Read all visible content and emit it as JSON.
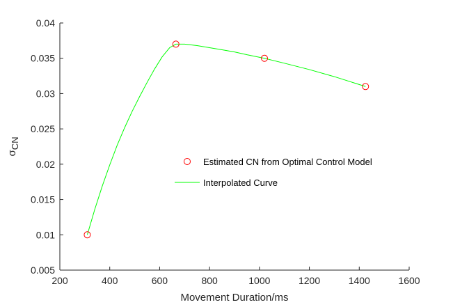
{
  "chart_data": {
    "type": "scatter",
    "xlabel": "Movement Duration/ms",
    "ylabel_main": "σ",
    "ylabel_sub": "CN",
    "xlim": [
      200,
      1600
    ],
    "ylim": [
      0.005,
      0.04
    ],
    "xticks": [
      200,
      400,
      600,
      800,
      1000,
      1200,
      1400,
      1600
    ],
    "yticks": [
      0.005,
      0.01,
      0.015,
      0.02,
      0.025,
      0.03,
      0.035,
      0.04
    ],
    "xtick_labels": [
      "200",
      "400",
      "600",
      "800",
      "1000",
      "1200",
      "1400",
      "1600"
    ],
    "ytick_labels": [
      "0.005",
      "0.01",
      "0.015",
      "0.02",
      "0.025",
      "0.03",
      "0.035",
      "0.04"
    ],
    "grid": false,
    "legend_position": "center",
    "series": [
      {
        "name": "Estimated CN from Optimal Control Model",
        "kind": "markers",
        "marker": "circle",
        "color": "#ff0000",
        "x": [
          310,
          665,
          1020,
          1425
        ],
        "y": [
          0.01,
          0.037,
          0.035,
          0.031
        ]
      },
      {
        "name": "Interpolated Curve",
        "kind": "line",
        "color": "#00ff00",
        "x": [
          310,
          340,
          370,
          400,
          430,
          460,
          490,
          520,
          550,
          580,
          610,
          640,
          665,
          700,
          750,
          800,
          850,
          900,
          950,
          1020,
          1100,
          1200,
          1300,
          1425
        ],
        "y": [
          0.01,
          0.0136,
          0.0169,
          0.0199,
          0.0227,
          0.0252,
          0.0275,
          0.0296,
          0.0316,
          0.0335,
          0.0352,
          0.0365,
          0.037,
          0.037,
          0.0368,
          0.0365,
          0.0362,
          0.0359,
          0.0355,
          0.035,
          0.0343,
          0.0334,
          0.0324,
          0.031
        ]
      }
    ]
  }
}
